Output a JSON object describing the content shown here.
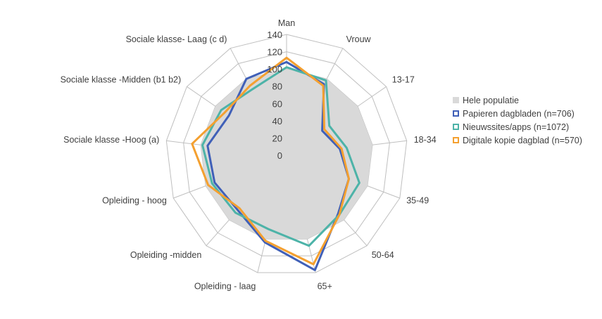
{
  "chart_data": {
    "type": "radar",
    "categories": [
      "Man",
      "Vrouw",
      "13-17",
      "18-34",
      "35-49",
      "50-64",
      "65+",
      "Opleiding - laag",
      "Opleiding -midden",
      "Opleiding - hoog",
      "Sociale klasse -Hoog (a)",
      "Sociale klasse -Midden (b1 b2)",
      "Sociale klasse- Laag (c d)"
    ],
    "rlim": [
      0,
      140
    ],
    "ticks": [
      0,
      20,
      40,
      60,
      80,
      100,
      120,
      140
    ],
    "tick_labels": [
      "0",
      "20",
      "40",
      "60",
      "80",
      "100",
      "120",
      "140"
    ],
    "grid": true,
    "legend_position": "right",
    "series": [
      {
        "name": "Hele populatie",
        "style": "area",
        "color": "#d9d9d9",
        "values": [
          100,
          100,
          100,
          100,
          100,
          100,
          100,
          100,
          100,
          100,
          100,
          100,
          100
        ]
      },
      {
        "name": "Papieren dagbladen (n=706)",
        "style": "line",
        "color": "#4060b8",
        "values": [
          108,
          93,
          50,
          62,
          77,
          90,
          137,
          104,
          85,
          89,
          92,
          81,
          100
        ]
      },
      {
        "name": "Nieuwssites/apps (n=1072)",
        "style": "line",
        "color": "#4db3a8",
        "values": [
          102,
          98,
          60,
          70,
          90,
          92,
          108,
          88,
          89,
          92,
          98,
          92,
          86
        ]
      },
      {
        "name": "Digitale kopie dagblad (n=570)",
        "style": "line",
        "color": "#f4a030",
        "values": [
          113,
          91,
          53,
          64,
          77,
          92,
          130,
          102,
          82,
          97,
          110,
          87,
          91
        ]
      }
    ]
  }
}
